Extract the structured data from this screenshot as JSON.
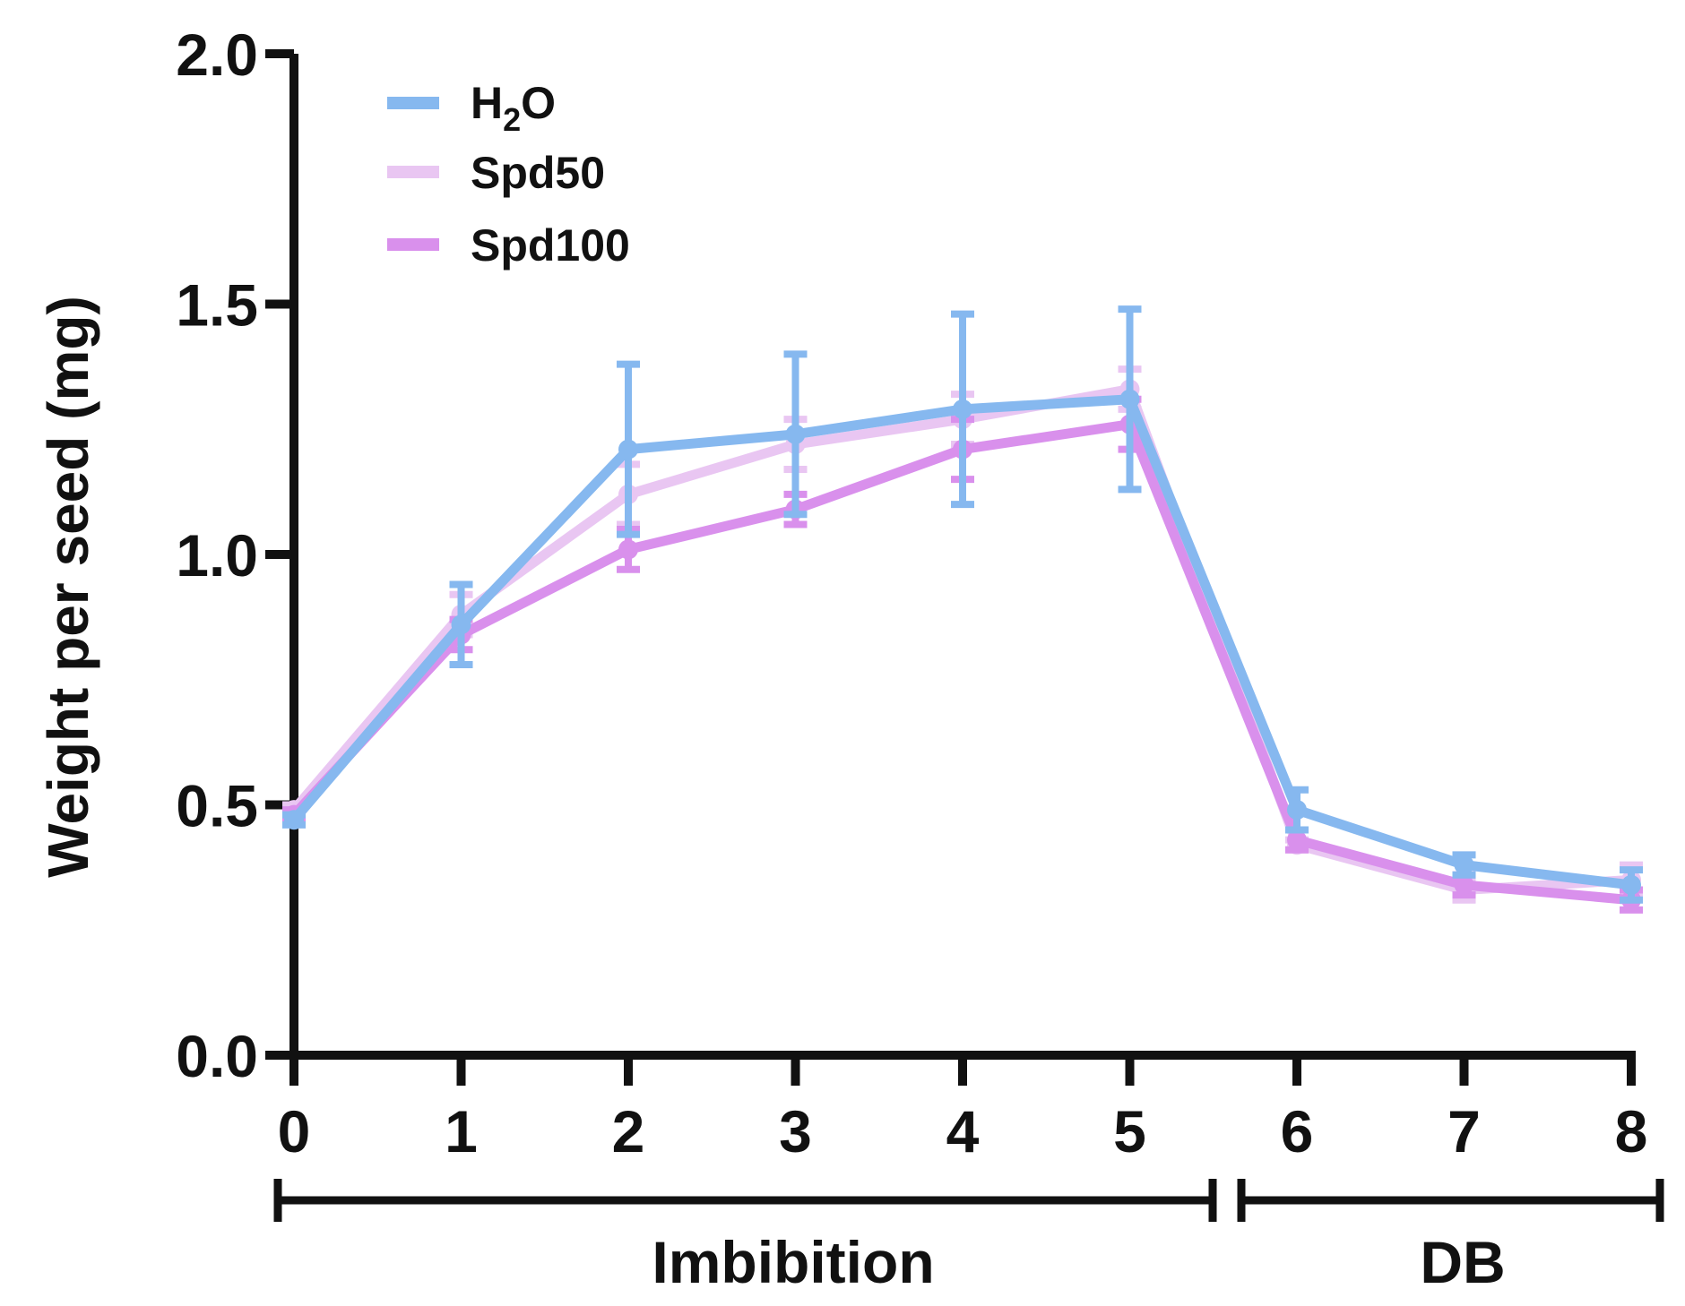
{
  "chart_data": {
    "type": "line",
    "title": "",
    "ylabel": "Weight per seed (mg)",
    "xlabel": "",
    "x": [
      0,
      1,
      2,
      3,
      4,
      5,
      6,
      7,
      8
    ],
    "x_tick_labels": [
      "0",
      "1",
      "2",
      "3",
      "4",
      "5",
      "6",
      "7",
      "8"
    ],
    "ylim": [
      0.0,
      2.0
    ],
    "y_ticks": [
      0.0,
      0.5,
      1.0,
      1.5,
      2.0
    ],
    "y_tick_labels": [
      "0.0",
      "0.5",
      "1.0",
      "1.5",
      "2.0"
    ],
    "legend_position": "top-left",
    "series": [
      {
        "name": "Spd50",
        "color": "#e9c6f2",
        "values": [
          0.49,
          0.88,
          1.12,
          1.22,
          1.27,
          1.33,
          0.42,
          0.33,
          0.35
        ],
        "errors": [
          0.01,
          0.04,
          0.06,
          0.05,
          0.05,
          0.04,
          0.01,
          0.02,
          0.03
        ]
      },
      {
        "name": "Spd100",
        "color": "#d990ec",
        "values": [
          0.48,
          0.84,
          1.01,
          1.09,
          1.21,
          1.26,
          0.43,
          0.34,
          0.31
        ],
        "errors": [
          0.01,
          0.03,
          0.04,
          0.03,
          0.06,
          0.05,
          0.02,
          0.02,
          0.02
        ]
      },
      {
        "name": "H2O",
        "color": "#86b8ef",
        "values": [
          0.47,
          0.86,
          1.21,
          1.24,
          1.29,
          1.31,
          0.49,
          0.38,
          0.34
        ],
        "errors": [
          0.01,
          0.08,
          0.17,
          0.16,
          0.19,
          0.18,
          0.04,
          0.02,
          0.03
        ]
      }
    ],
    "legend": [
      {
        "label_main": "H",
        "label_sub": "2",
        "label_tail": "O",
        "color": "#86b8ef"
      },
      {
        "label_main": "Spd50",
        "label_sub": "",
        "label_tail": "",
        "color": "#e9c6f2"
      },
      {
        "label_main": "Spd100",
        "label_sub": "",
        "label_tail": "",
        "color": "#d990ec"
      }
    ],
    "groups": [
      {
        "label": "Imbibition",
        "from": 0,
        "to": 5
      },
      {
        "label": "DB",
        "from": 6,
        "to": 8
      }
    ]
  }
}
